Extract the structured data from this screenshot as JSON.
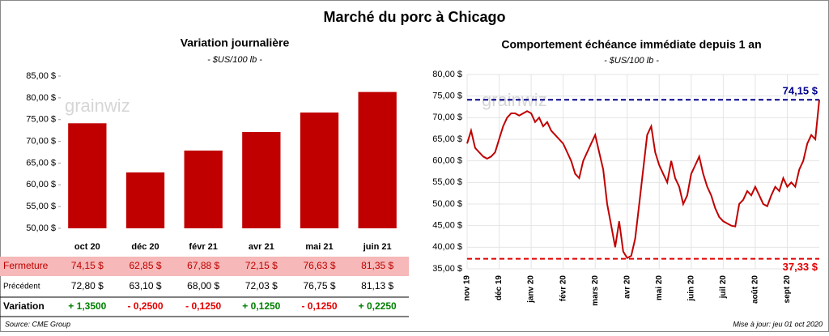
{
  "title": "Marché du porc à Chicago",
  "watermark": "grainwiz",
  "source": "Source: CME Group",
  "updated": "Mise à jour: jeu 01 oct 2020",
  "chart_data": [
    {
      "type": "bar",
      "title": "Variation journalière",
      "subtitle": "- $US/100 lb -",
      "categories": [
        "oct 20",
        "déc 20",
        "févr 21",
        "avr 21",
        "mai 21",
        "juin 21"
      ],
      "values": [
        74.15,
        62.85,
        67.88,
        72.15,
        76.63,
        81.35
      ],
      "color": "#c00000",
      "ylim": [
        50,
        85
      ],
      "yticks": [
        {
          "value": 50,
          "label": "50,00 $"
        },
        {
          "value": 55,
          "label": "55,00 $"
        },
        {
          "value": 60,
          "label": "60,00 $"
        },
        {
          "value": 65,
          "label": "65,00 $"
        },
        {
          "value": 70,
          "label": "70,00 $"
        },
        {
          "value": 75,
          "label": "75,00 $"
        },
        {
          "value": 80,
          "label": "80,00 $"
        },
        {
          "value": 85,
          "label": "85,00 $"
        }
      ],
      "grid": false
    },
    {
      "type": "line",
      "title": "Comportement échéance immédiate depuis 1 an",
      "subtitle": "- $US/100 lb -",
      "categories": [
        "nov 19",
        null,
        null,
        null,
        null,
        null,
        null,
        null,
        "déc 19",
        null,
        null,
        null,
        null,
        null,
        null,
        null,
        "janv 20",
        null,
        null,
        null,
        null,
        null,
        null,
        null,
        "févr 20",
        null,
        null,
        null,
        null,
        null,
        null,
        null,
        "mars 20",
        null,
        null,
        null,
        null,
        null,
        null,
        null,
        "avr 20",
        null,
        null,
        null,
        null,
        null,
        null,
        null,
        "mai 20",
        null,
        null,
        null,
        null,
        null,
        null,
        null,
        "juin 20",
        null,
        null,
        null,
        null,
        null,
        null,
        null,
        "juil 20",
        null,
        null,
        null,
        null,
        null,
        null,
        null,
        "août 20",
        null,
        null,
        null,
        null,
        null,
        null,
        null,
        "sept 20",
        null,
        null,
        null,
        null,
        null,
        null,
        null,
        null
      ],
      "values": [
        64,
        67,
        63,
        62,
        61,
        60.5,
        61,
        62,
        65,
        68,
        70,
        71,
        71,
        70.5,
        71,
        71.5,
        71,
        69,
        70,
        68,
        69,
        67,
        66,
        65,
        64,
        62,
        60,
        57,
        56,
        60,
        62,
        64,
        66,
        62,
        58,
        50,
        45,
        40,
        46,
        39,
        37.5,
        38,
        42,
        50,
        58,
        66,
        68,
        62,
        59,
        57,
        55,
        60,
        56,
        54,
        50,
        52,
        57,
        59,
        61,
        57,
        54,
        52,
        49,
        47,
        46,
        45.5,
        45,
        44.8,
        50,
        51,
        53,
        52,
        54,
        52,
        50,
        49.5,
        52,
        54,
        53,
        56,
        54,
        55,
        54,
        58,
        60,
        64,
        66,
        65,
        74.15
      ],
      "color": "#c00000",
      "ylim": [
        35,
        80
      ],
      "yticks": [
        {
          "value": 35,
          "label": "35,00 $"
        },
        {
          "value": 40,
          "label": "40,00 $"
        },
        {
          "value": 45,
          "label": "45,00 $"
        },
        {
          "value": 50,
          "label": "50,00 $"
        },
        {
          "value": 55,
          "label": "55,00 $"
        },
        {
          "value": 60,
          "label": "60,00 $"
        },
        {
          "value": 65,
          "label": "65,00 $"
        },
        {
          "value": 70,
          "label": "70,00 $"
        },
        {
          "value": 75,
          "label": "75,00 $"
        },
        {
          "value": 80,
          "label": "80,00 $"
        }
      ],
      "grid": true,
      "reference_lines": [
        {
          "value": 74.15,
          "label": "74,15 $",
          "color": "#00008b"
        },
        {
          "value": 37.33,
          "label": "37,33 $",
          "color": "#e00000"
        }
      ]
    }
  ],
  "table": {
    "rows": [
      [
        "Fermeture",
        "74,15 $",
        "62,85 $",
        "67,88 $",
        "72,15 $",
        "76,63 $",
        "81,35 $"
      ],
      [
        "Précédent",
        "72,80 $",
        "63,10 $",
        "68,00 $",
        "72,03 $",
        "76,75 $",
        "81,13 $"
      ],
      [
        "Variation",
        "+ 1,3500",
        "- 0,2500",
        "- 0,1250",
        "+ 0,1250",
        "- 0,1250",
        "+ 0,2250"
      ]
    ]
  }
}
